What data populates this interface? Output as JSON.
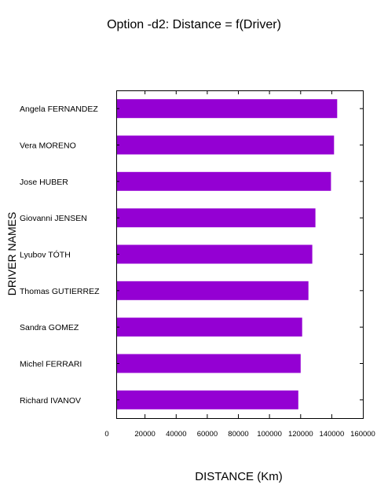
{
  "chart_data": {
    "type": "bar",
    "orientation": "horizontal",
    "title": "Option -d2: Distance = f(Driver)",
    "xlabel": "DISTANCE (Km)",
    "ylabel": "DRIVER NAMES",
    "categories": [
      "Angela FERNANDEZ",
      "Vera MORENO",
      "Jose HUBER",
      "Giovanni JENSEN",
      "Lyubov TÓTH",
      "Thomas GUTIERREZ",
      "Sandra GOMEZ",
      "Michel FERRARI",
      "Richard IVANOV"
    ],
    "values": [
      143500,
      141500,
      139500,
      129500,
      127500,
      125000,
      121000,
      120000,
      118500
    ],
    "xlim": [
      0,
      160000
    ],
    "xticks": [
      "0",
      "20000",
      "40000",
      "60000",
      "80000",
      "100000",
      "120000",
      "140000",
      "160000"
    ],
    "bar_color": "#9400d3",
    "grid": false
  }
}
